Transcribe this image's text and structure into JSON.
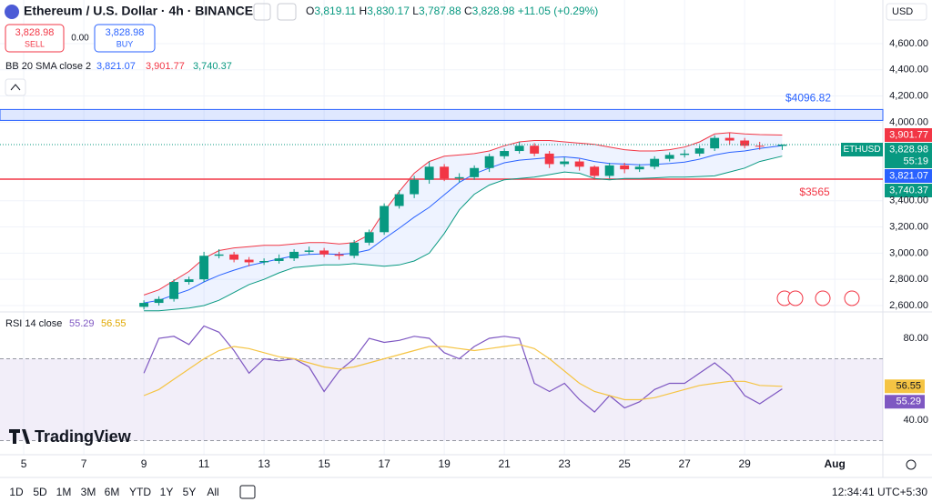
{
  "header": {
    "symbol": "Ethereum / U.S. Dollar · 4h · BINANCE",
    "ohlc": [
      {
        "key": "O",
        "value": "3,819.11"
      },
      {
        "key": "H",
        "value": "3,830.17"
      },
      {
        "key": "L",
        "value": "3,787.88"
      },
      {
        "key": "C",
        "value": "3,828.98"
      }
    ],
    "change": "+11.05 (+0.29%)",
    "currency": "USD"
  },
  "trade": {
    "sell_price": "3,828.98",
    "sell": "SELL",
    "spread": "0.00",
    "buy_price": "3,828.98",
    "buy": "BUY"
  },
  "indicators": {
    "bb": {
      "name": "BB 20 SMA close 2",
      "values": [
        "3,821.07",
        "3,901.77",
        "3,740.37"
      ]
    },
    "rsi": {
      "name": "RSI 14 close",
      "values": [
        "55.29",
        "56.55"
      ]
    }
  },
  "chart_data": [
    {
      "type": "candlestick",
      "x": [
        9,
        9.5,
        10,
        10.5,
        11,
        11.5,
        12,
        12.5,
        13,
        13.5,
        14,
        14.5,
        15,
        15.5,
        16,
        16.5,
        17,
        17.5,
        18,
        18.5,
        19,
        19.5,
        20,
        20.5,
        21,
        21.5,
        22,
        22.5,
        23,
        23.5,
        24,
        24.5,
        25,
        25.5,
        26,
        26.5,
        27,
        27.5,
        28,
        28.5,
        29,
        29.5,
        30.25
      ],
      "open": [
        2590,
        2620,
        2650,
        2780,
        2800,
        2980,
        2990,
        2950,
        2930,
        2940,
        2960,
        3010,
        3020,
        2990,
        2980,
        3080,
        3160,
        3360,
        3450,
        3560,
        3660,
        3570,
        3580,
        3650,
        3740,
        3780,
        3820,
        3760,
        3680,
        3700,
        3660,
        3590,
        3670,
        3640,
        3660,
        3720,
        3750,
        3760,
        3800,
        3880,
        3860,
        3820,
        3819.11
      ],
      "high": [
        2640,
        2670,
        2800,
        2820,
        3010,
        3030,
        3010,
        2970,
        2960,
        2990,
        3030,
        3050,
        3040,
        3010,
        3100,
        3180,
        3380,
        3480,
        3590,
        3700,
        3680,
        3610,
        3670,
        3760,
        3800,
        3850,
        3840,
        3780,
        3730,
        3720,
        3670,
        3690,
        3690,
        3680,
        3740,
        3770,
        3790,
        3820,
        3900,
        3920,
        3880,
        3850,
        3830.17
      ],
      "low": [
        2570,
        2600,
        2630,
        2760,
        2780,
        2960,
        2930,
        2900,
        2910,
        2920,
        2940,
        2990,
        2970,
        2950,
        2960,
        3060,
        3140,
        3340,
        3420,
        3530,
        3550,
        3540,
        3560,
        3620,
        3720,
        3760,
        3740,
        3650,
        3660,
        3630,
        3560,
        3570,
        3610,
        3620,
        3640,
        3700,
        3730,
        3740,
        3780,
        3830,
        3800,
        3790,
        3787.88
      ],
      "close": [
        2620,
        2650,
        2780,
        2800,
        2980,
        2990,
        2950,
        2930,
        2940,
        2960,
        3010,
        3020,
        2990,
        2980,
        3080,
        3160,
        3360,
        3450,
        3560,
        3660,
        3570,
        3580,
        3650,
        3740,
        3780,
        3820,
        3760,
        3680,
        3700,
        3660,
        3590,
        3670,
        3640,
        3660,
        3720,
        3750,
        3760,
        3800,
        3880,
        3860,
        3820,
        3817.93,
        3828.98
      ],
      "up_color": "#089981",
      "down_color": "#f23645",
      "bollinger": {
        "fill": "rgba(41,98,255,0.08)",
        "upper": {
          "color": "#f23645",
          "values": [
            2680,
            2720,
            2790,
            2860,
            2960,
            3020,
            3040,
            3050,
            3060,
            3060,
            3070,
            3080,
            3080,
            3070,
            3080,
            3140,
            3320,
            3470,
            3610,
            3700,
            3740,
            3750,
            3760,
            3780,
            3820,
            3850,
            3860,
            3860,
            3850,
            3840,
            3830,
            3810,
            3790,
            3780,
            3780,
            3790,
            3810,
            3850,
            3910,
            3920,
            3910,
            3905,
            3901.77
          ]
        },
        "basis": {
          "color": "#2962ff",
          "values": [
            2620,
            2640,
            2680,
            2720,
            2780,
            2830,
            2870,
            2905,
            2930,
            2955,
            2980,
            2990,
            2995,
            2990,
            3000,
            3025,
            3110,
            3190,
            3275,
            3350,
            3445,
            3540,
            3605,
            3650,
            3690,
            3710,
            3720,
            3730,
            3735,
            3725,
            3700,
            3685,
            3680,
            3675,
            3678,
            3685,
            3695,
            3718,
            3750,
            3770,
            3780,
            3800,
            3821.07
          ]
        },
        "lower": {
          "color": "#089981",
          "values": [
            2560,
            2560,
            2570,
            2580,
            2600,
            2640,
            2700,
            2760,
            2800,
            2850,
            2890,
            2900,
            2910,
            2910,
            2920,
            2910,
            2900,
            2910,
            2940,
            3000,
            3150,
            3330,
            3450,
            3520,
            3560,
            3570,
            3580,
            3600,
            3620,
            3610,
            3570,
            3560,
            3570,
            3570,
            3575,
            3580,
            3580,
            3585,
            3590,
            3620,
            3650,
            3700,
            3740.37
          ]
        }
      },
      "xlim": [
        4.21,
        33.6
      ],
      "xticks": [
        5,
        7,
        9,
        11,
        13,
        15,
        17,
        19,
        21,
        23,
        25,
        27,
        29,
        {
          "value": 32,
          "label": "Aug"
        }
      ],
      "ylim": [
        2558,
        4933
      ],
      "yticks": [
        {
          "value": 2600,
          "label": "2,600.00"
        },
        {
          "value": 2800,
          "label": "2,800.00"
        },
        {
          "value": 3000,
          "label": "3,000.00"
        },
        {
          "value": 3200,
          "label": "3,200.00"
        },
        {
          "value": 3400,
          "label": "3,400.00"
        },
        {
          "value": 4000,
          "label": "4,000.00"
        },
        {
          "value": 4200,
          "label": "4,200.00"
        },
        {
          "value": 4400,
          "label": "4,400.00"
        },
        {
          "value": 4600,
          "label": "4,600.00"
        }
      ],
      "grid": true,
      "levels": [
        {
          "value": 4096.82,
          "label": "$4096.82",
          "color": "#2962ff",
          "style": "zone"
        },
        {
          "value": 3565,
          "label": "$3565",
          "color": "#f23645",
          "style": "line"
        }
      ],
      "symbol_tag": "ETHUSD",
      "countdown": "55:19",
      "price_tags": [
        {
          "value": 3828.98,
          "label": "3,828.98",
          "color": "#089981"
        },
        {
          "value": 3901.77,
          "label": "3,901.77",
          "color": "#f23645"
        },
        {
          "value": 3821.07,
          "label": "3,821.07",
          "color": "#2962ff"
        },
        {
          "value": 3740.37,
          "label": "3,740.37",
          "color": "#089981"
        }
      ]
    },
    {
      "type": "line",
      "x": [
        9,
        9.5,
        10,
        10.5,
        11,
        11.5,
        12,
        12.5,
        13,
        13.5,
        14,
        14.5,
        15,
        15.5,
        16,
        16.5,
        17,
        17.5,
        18,
        18.5,
        19,
        19.5,
        20,
        20.5,
        21,
        21.5,
        22,
        22.5,
        23,
        23.5,
        24,
        24.5,
        25,
        25.5,
        26,
        26.5,
        27,
        27.5,
        28,
        28.5,
        29,
        29.5,
        30.25
      ],
      "series": [
        {
          "color": "#7e57c2",
          "tag": "55.29",
          "values": [
            63,
            80,
            81,
            77,
            86,
            83,
            74,
            63,
            70,
            69,
            70,
            66,
            54,
            64,
            70,
            80,
            78,
            79,
            81,
            80,
            73,
            70,
            76,
            80,
            81,
            80,
            58,
            54,
            58,
            50,
            44,
            52,
            46,
            49,
            55,
            58,
            58,
            63,
            68,
            62,
            52,
            48,
            55.29
          ]
        },
        {
          "color": "#f5c443",
          "tag": "56.55",
          "values": [
            52,
            55,
            60,
            65,
            70,
            74,
            76,
            75,
            73,
            71,
            70,
            68,
            66,
            65,
            66,
            68,
            70,
            72,
            74,
            76,
            76,
            75,
            74,
            75,
            76,
            77,
            75,
            70,
            64,
            58,
            54,
            52,
            50,
            50,
            51,
            53,
            55,
            57,
            58,
            59,
            59,
            57,
            56.55
          ]
        }
      ],
      "xlim": [
        4.21,
        33.6
      ],
      "ylim": [
        24,
        92
      ],
      "yticks": [
        {
          "value": 40,
          "label": "40.00"
        },
        {
          "value": 80,
          "label": "80.00"
        }
      ],
      "band": [
        30,
        70
      ],
      "band_color": "rgba(126,87,194,0.1)"
    }
  ],
  "footer": {
    "periods": [
      "1D",
      "5D",
      "1M",
      "3M",
      "6M",
      "YTD",
      "1Y",
      "5Y",
      "All"
    ],
    "time": "12:34:41 UTC+5:30",
    "brand": "TradingView"
  }
}
